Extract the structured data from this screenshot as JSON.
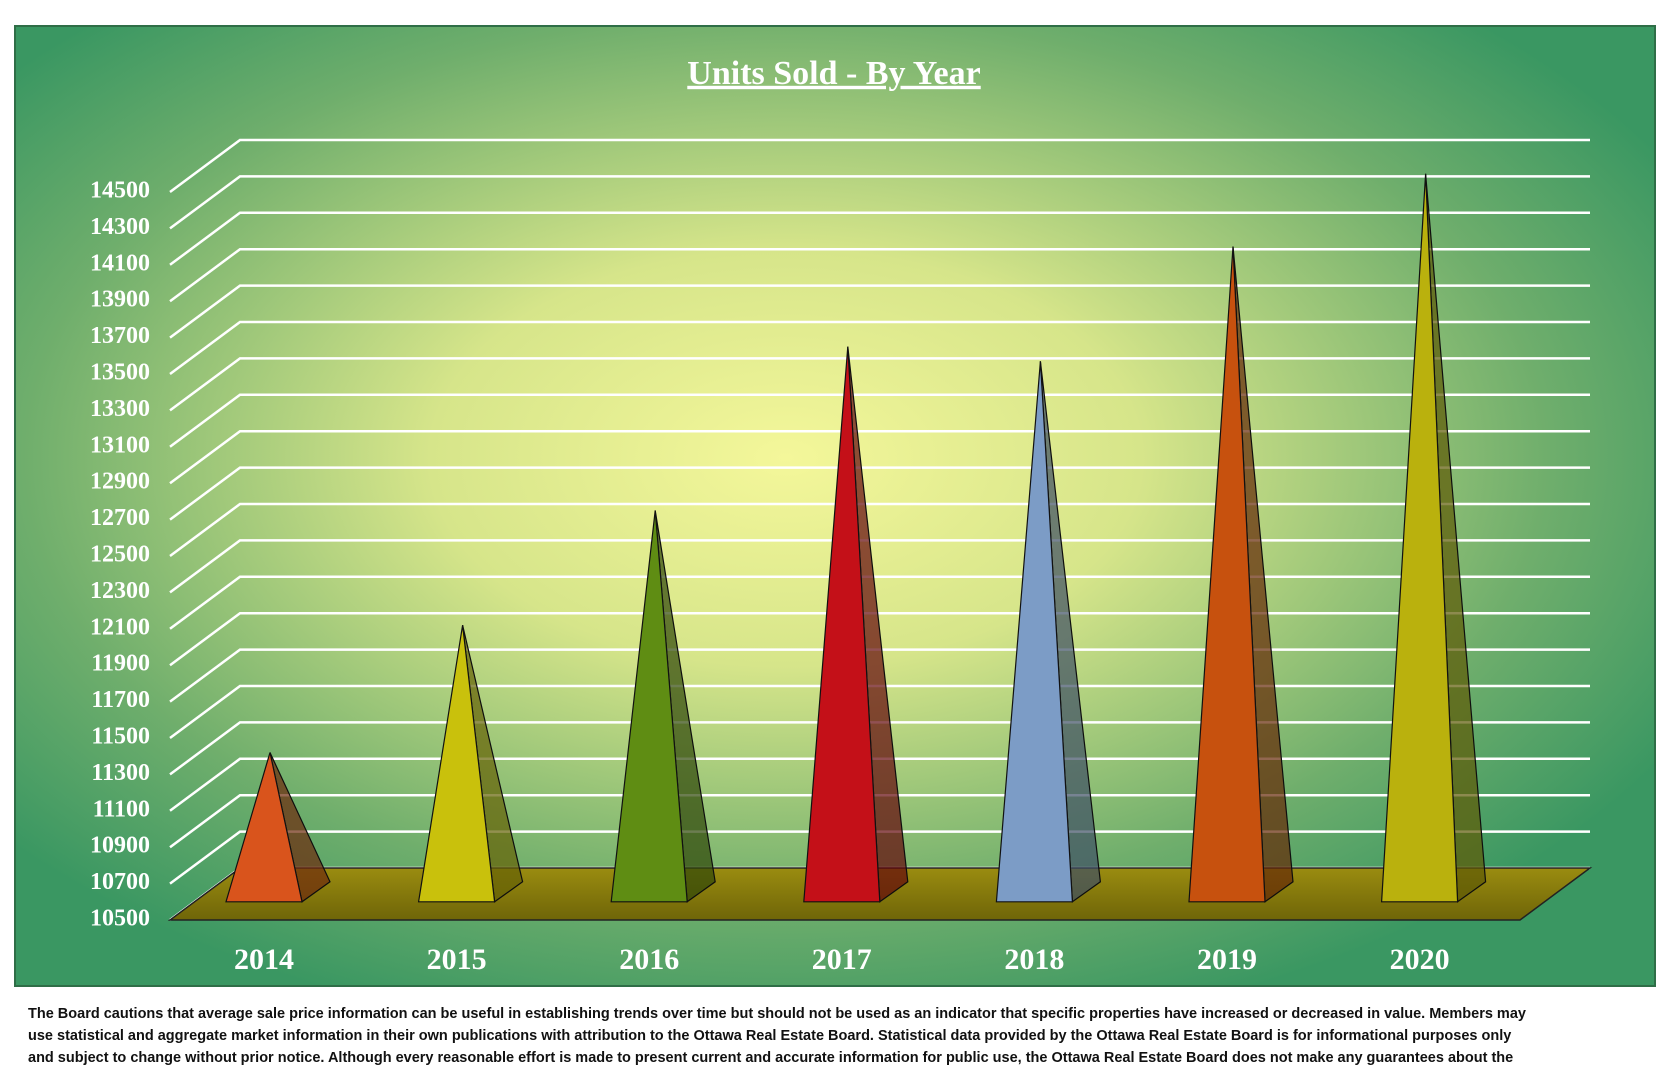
{
  "chart_data": {
    "type": "bar3d-pyramid",
    "title": "Units Sold - By Year",
    "categories": [
      "2014",
      "2015",
      "2016",
      "2017",
      "2018",
      "2019",
      "2020"
    ],
    "values": [
      11320,
      12020,
      12650,
      13550,
      13470,
      14100,
      14500
    ],
    "colors": [
      "#d9541c",
      "#c9c10c",
      "#5f8d13",
      "#c41018",
      "#7c9cc6",
      "#c7510e",
      "#bab10d"
    ],
    "ylim": [
      10500,
      14500
    ],
    "yticks": [
      10500,
      10700,
      10900,
      11100,
      11300,
      11500,
      11700,
      11900,
      12100,
      12300,
      12500,
      12700,
      12900,
      13100,
      13300,
      13500,
      13700,
      13900,
      14100,
      14300,
      14500
    ],
    "grid": true,
    "footnote": [
      "The Board cautions that average sale price information can be useful in establishing trends over time but should not be used as an indicator that specific properties have increased or decreased in value.  Members may",
      "use statistical and aggregate market information in their own publications with attribution to the Ottawa Real Estate Board.  Statistical data provided by the Ottawa Real Estate Board is for informational purposes only",
      "and subject to change without prior notice. Although every reasonable effort is made to present current and accurate information for public use, the Ottawa Real Estate Board does not make any guarantees about the"
    ]
  }
}
